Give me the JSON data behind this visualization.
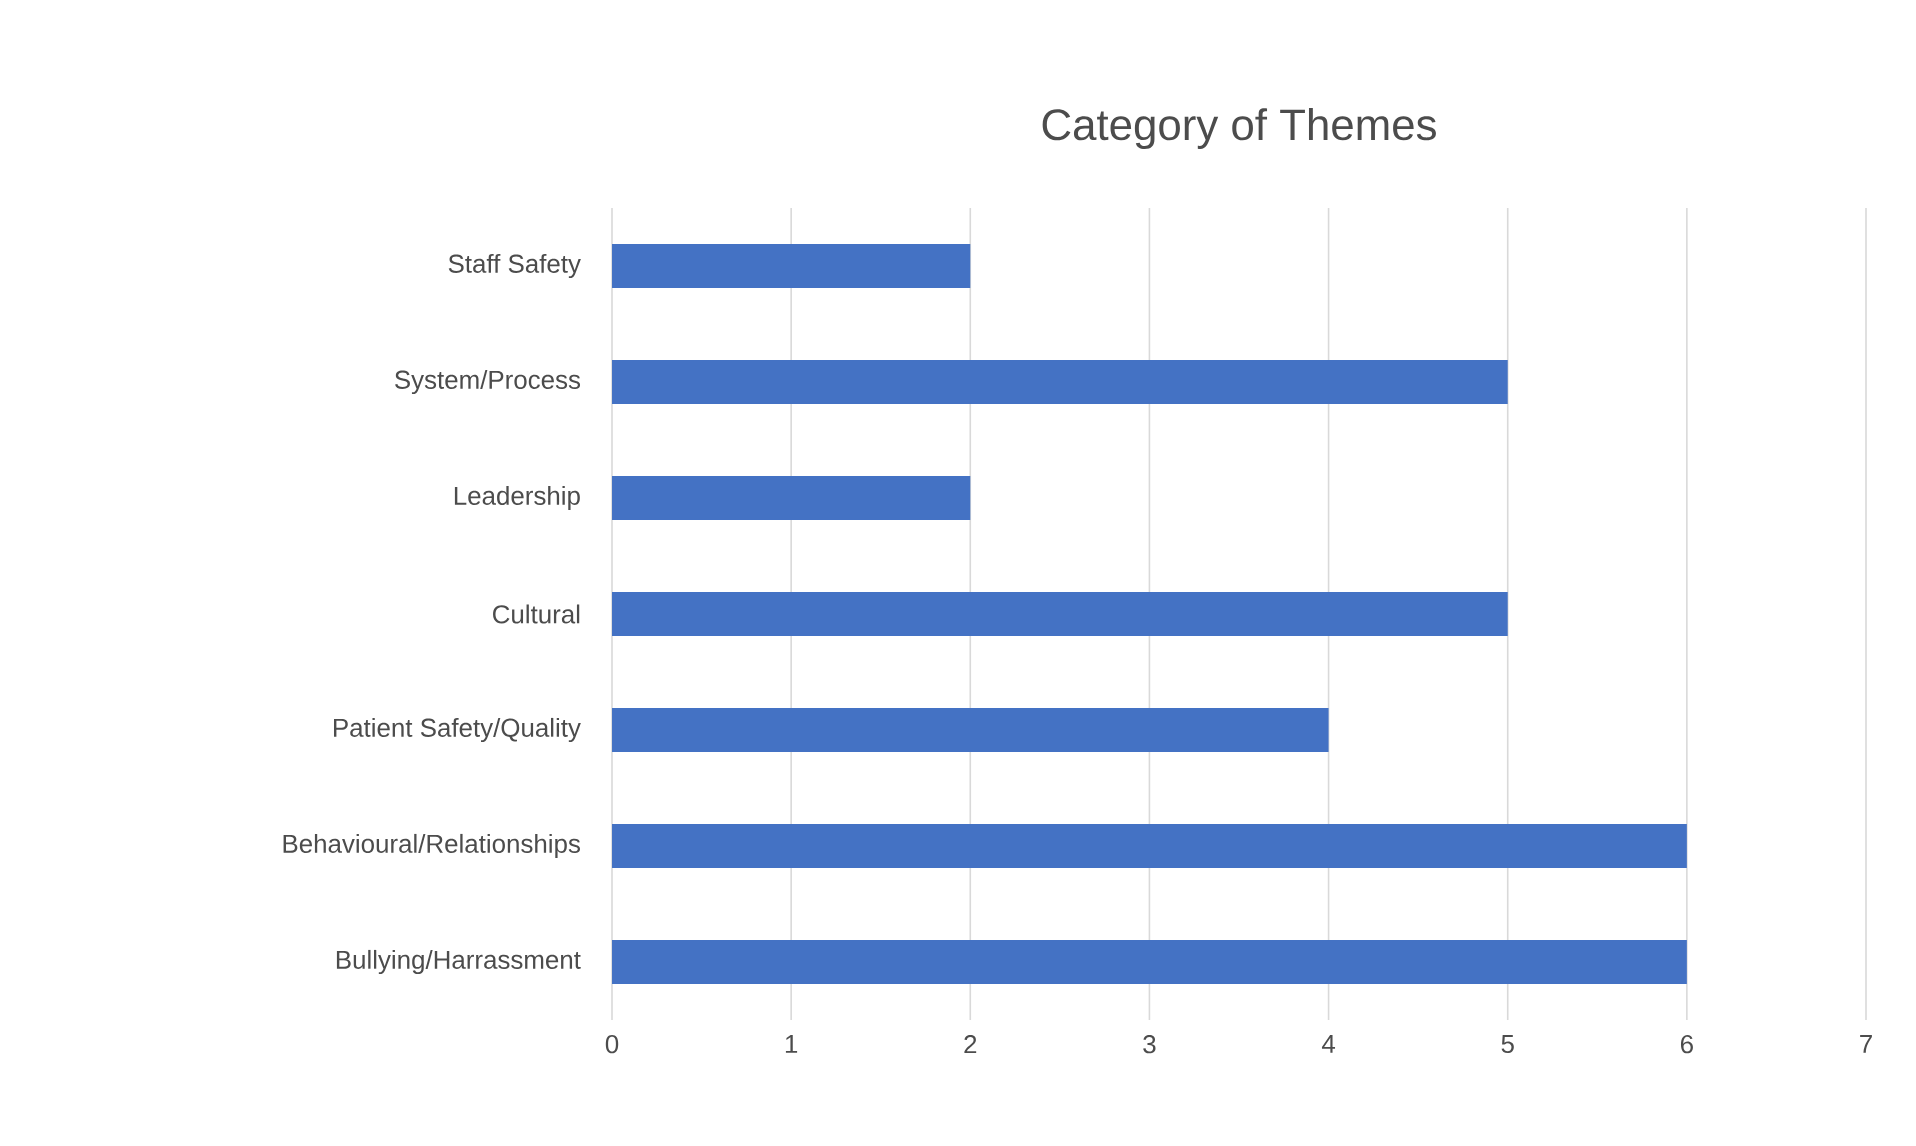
{
  "chart_data": {
    "type": "bar",
    "orientation": "horizontal",
    "title": "Category of Themes",
    "categories": [
      "Staff Safety",
      "System/Process",
      "Leadership",
      "Cultural",
      "Patient Safety/Quality",
      "Behavioural/Relationships",
      "Bullying/Harrassment"
    ],
    "values": [
      2,
      5,
      2,
      5,
      4,
      6,
      6
    ],
    "color": "#4472c4",
    "xlim": [
      0,
      7
    ],
    "xticks": [
      0,
      1,
      2,
      3,
      4,
      5,
      6,
      7
    ],
    "grid": "x"
  }
}
